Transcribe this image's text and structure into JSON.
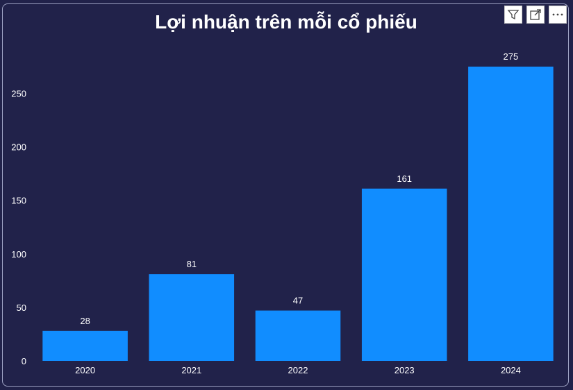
{
  "header": {
    "icons": [
      "filter-icon",
      "focus-mode-icon",
      "more-options-icon"
    ]
  },
  "colors": {
    "background": "#21224a",
    "bar": "#118dff",
    "text": "#ffffff"
  },
  "chart_data": {
    "type": "bar",
    "title": "Lợi nhuận trên mỗi cổ phiếu",
    "categories": [
      "2020",
      "2021",
      "2022",
      "2023",
      "2024"
    ],
    "values": [
      28,
      81,
      47,
      161,
      275
    ],
    "data_labels": [
      "28",
      "81",
      "47",
      "161",
      "275"
    ],
    "ylim": [
      0,
      275
    ],
    "yticks": [
      0,
      50,
      100,
      150,
      200,
      250
    ],
    "grid": false,
    "legend": "none"
  }
}
